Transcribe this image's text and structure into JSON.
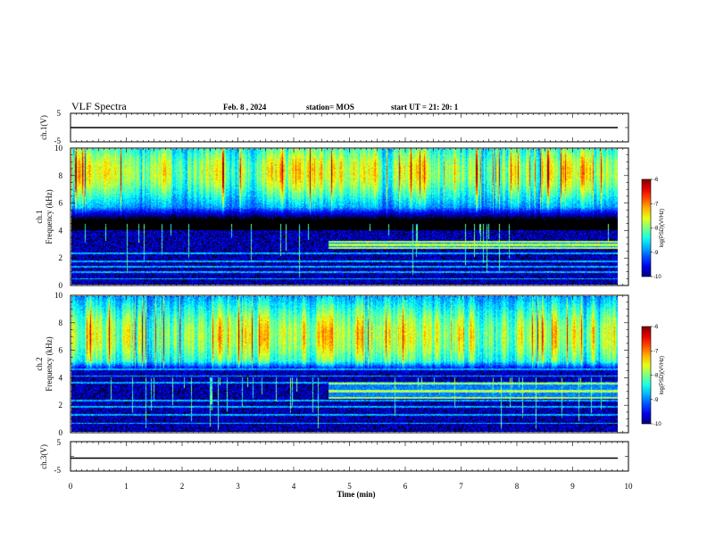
{
  "header": {
    "title": "VLF Spectra",
    "date": "Feb. 8 , 2024",
    "station": "station= MOS",
    "start": "start UT = 21: 20: 1"
  },
  "chart_data": {
    "type": "heatmap",
    "xlabel": "Time (min)",
    "xlim": [
      0,
      10
    ],
    "x_ticks": [
      "0",
      "1",
      "2",
      "3",
      "4",
      "5",
      "6",
      "7",
      "8",
      "9",
      "10"
    ],
    "panels": [
      {
        "id": "ch1v",
        "kind": "line",
        "ylabel": "ch.1(V)",
        "ylim": [
          -5,
          5
        ],
        "y_ticks": [
          "5",
          "-5"
        ],
        "value": 0
      },
      {
        "id": "ch1",
        "kind": "spectrogram",
        "ylabel_line1": "ch.1",
        "ylabel_line2": "Frequency (kHz)",
        "ylim": [
          0,
          10
        ],
        "y_ticks": [
          "0",
          "2",
          "4",
          "6",
          "8",
          "10"
        ],
        "features": {
          "sferic_band_khz": [
            4.5,
            10
          ],
          "sferic_peak_khz": [
            7.5,
            9.2
          ],
          "background_top_khz": 4.0,
          "tone_lines_khz": [
            0.4,
            0.9,
            1.3,
            1.7,
            2.3
          ],
          "emission_khz": [
            2.6,
            3.2
          ],
          "emission_start_min": 4.6
        },
        "colorbar": {
          "label": "log(PSD)(V²/Hz)",
          "ticks": [
            "-6",
            "-7",
            "-8",
            "-9",
            "-10"
          ],
          "range": [
            -10,
            -6
          ]
        }
      },
      {
        "id": "ch2",
        "kind": "spectrogram",
        "ylabel_line1": "ch.2",
        "ylabel_line2": "Frequency (kHz)",
        "ylim": [
          0,
          10
        ],
        "y_ticks": [
          "0",
          "2",
          "4",
          "6",
          "8",
          "10"
        ],
        "features": {
          "sferic_band_khz": [
            4.0,
            10
          ],
          "sferic_peak_khz": [
            6.0,
            8.2
          ],
          "background_top_khz": 4.5,
          "tone_lines_khz": [
            0.6,
            1.2,
            1.8,
            2.3,
            3.6,
            4.1,
            4.6
          ],
          "emission_khz": [
            2.4,
            3.6
          ],
          "emission_start_min": 4.6
        },
        "colorbar": {
          "label": "log(PSD)(V²/Hz)",
          "ticks": [
            "-6",
            "-7",
            "-8",
            "-9",
            "-10"
          ],
          "range": [
            -10,
            -6
          ]
        }
      },
      {
        "id": "ch3v",
        "kind": "line",
        "ylabel": "ch.3(V)",
        "ylim": [
          -5,
          5
        ],
        "y_ticks": [
          "5",
          "-5"
        ],
        "value": 0
      }
    ]
  }
}
